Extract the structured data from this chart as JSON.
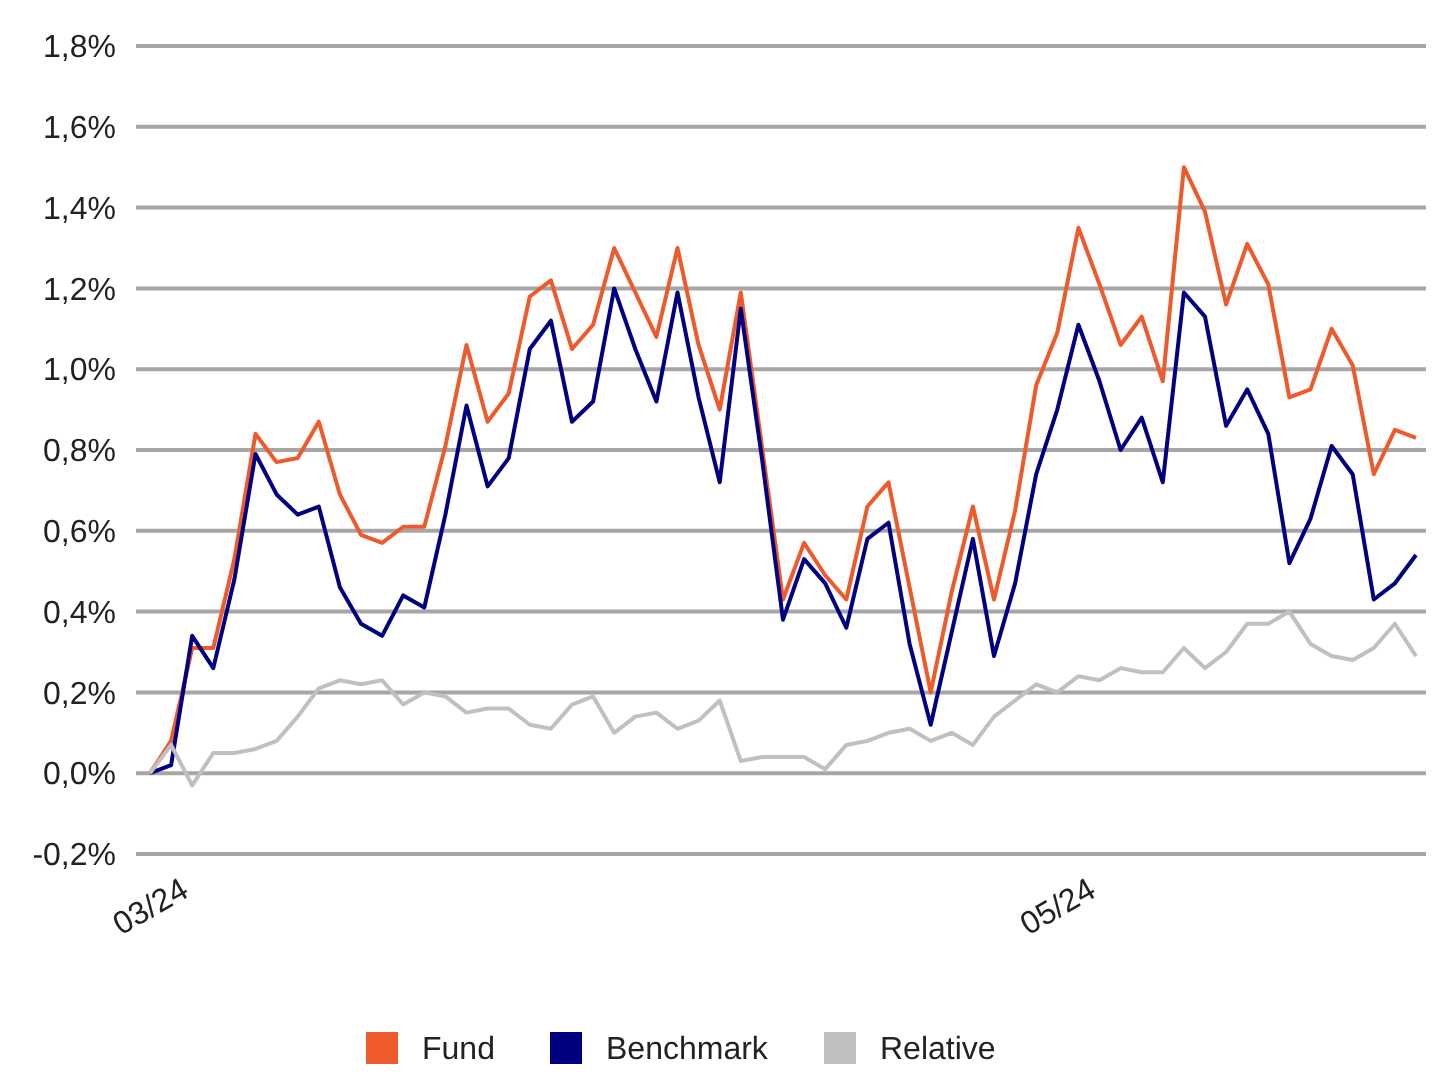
{
  "chart_data": {
    "type": "line",
    "categories": [
      "03/24",
      null,
      null,
      null,
      null,
      null,
      null,
      null,
      null,
      null,
      null,
      null,
      null,
      null,
      null,
      null,
      null,
      null,
      null,
      null,
      null,
      null,
      null,
      null,
      null,
      null,
      null,
      null,
      null,
      null,
      null,
      null,
      null,
      null,
      null,
      null,
      null,
      null,
      null,
      null,
      null,
      null,
      null,
      "05/24",
      null,
      null,
      null,
      null,
      null,
      null,
      null,
      null,
      null,
      null,
      null,
      null,
      null,
      null,
      null,
      null,
      null
    ],
    "series": [
      {
        "name": "Fund",
        "color": "#ee5a2c",
        "values": [
          0.0,
          0.08,
          0.31,
          0.31,
          0.53,
          0.84,
          0.77,
          0.78,
          0.87,
          0.69,
          0.59,
          0.57,
          0.61,
          0.61,
          0.81,
          1.06,
          0.87,
          0.94,
          1.18,
          1.22,
          1.05,
          1.11,
          1.3,
          1.19,
          1.08,
          1.3,
          1.06,
          0.9,
          1.19,
          0.81,
          0.43,
          0.57,
          0.49,
          0.43,
          0.66,
          0.72,
          0.46,
          0.2,
          0.45,
          0.66,
          0.43,
          0.65,
          0.96,
          1.09,
          1.35,
          1.21,
          1.06,
          1.13,
          0.97,
          1.5,
          1.39,
          1.16,
          1.31,
          1.21,
          0.93,
          0.95,
          1.1,
          1.01,
          0.74,
          0.85,
          0.83
        ]
      },
      {
        "name": "Benchmark",
        "color": "#000080",
        "values": [
          0.0,
          0.02,
          0.34,
          0.26,
          0.48,
          0.79,
          0.69,
          0.64,
          0.66,
          0.46,
          0.37,
          0.34,
          0.44,
          0.41,
          0.64,
          0.91,
          0.71,
          0.78,
          1.05,
          1.12,
          0.87,
          0.92,
          1.2,
          1.05,
          0.92,
          1.19,
          0.93,
          0.72,
          1.15,
          0.78,
          0.38,
          0.53,
          0.47,
          0.36,
          0.58,
          0.62,
          0.32,
          0.12,
          0.35,
          0.58,
          0.29,
          0.47,
          0.74,
          0.9,
          1.11,
          0.97,
          0.8,
          0.88,
          0.72,
          1.19,
          1.13,
          0.86,
          0.95,
          0.84,
          0.52,
          0.63,
          0.81,
          0.74,
          0.43,
          0.47,
          0.54
        ]
      },
      {
        "name": "Relative",
        "color": "#c0c0c0",
        "values": [
          0.0,
          0.07,
          -0.03,
          0.05,
          0.05,
          0.06,
          0.08,
          0.14,
          0.21,
          0.23,
          0.22,
          0.23,
          0.17,
          0.2,
          0.19,
          0.15,
          0.16,
          0.16,
          0.12,
          0.11,
          0.17,
          0.19,
          0.1,
          0.14,
          0.15,
          0.11,
          0.13,
          0.18,
          0.03,
          0.04,
          0.04,
          0.04,
          0.01,
          0.07,
          0.08,
          0.1,
          0.11,
          0.08,
          0.1,
          0.07,
          0.14,
          0.18,
          0.22,
          0.2,
          0.24,
          0.23,
          0.26,
          0.25,
          0.25,
          0.31,
          0.26,
          0.3,
          0.37,
          0.37,
          0.4,
          0.32,
          0.29,
          0.28,
          0.31,
          0.37,
          0.29
        ]
      }
    ],
    "ylim": [
      -0.2,
      1.8
    ],
    "yticks": [
      {
        "value": -0.2,
        "label": "-0,2%"
      },
      {
        "value": 0,
        "label": "0,0%"
      },
      {
        "value": 0.2,
        "label": "0,2%"
      },
      {
        "value": 0.4,
        "label": "0,4%"
      },
      {
        "value": 0.6,
        "label": "0,6%"
      },
      {
        "value": 0.8,
        "label": "0,8%"
      },
      {
        "value": 1.0,
        "label": "1,0%"
      },
      {
        "value": 1.2,
        "label": "1,2%"
      },
      {
        "value": 1.4,
        "label": "1,4%"
      },
      {
        "value": 1.6,
        "label": "1,6%"
      },
      {
        "value": 1.8,
        "label": "1,8%"
      }
    ],
    "grid": "y",
    "legend": "bottom",
    "marker": "none",
    "line_style": "solid"
  }
}
